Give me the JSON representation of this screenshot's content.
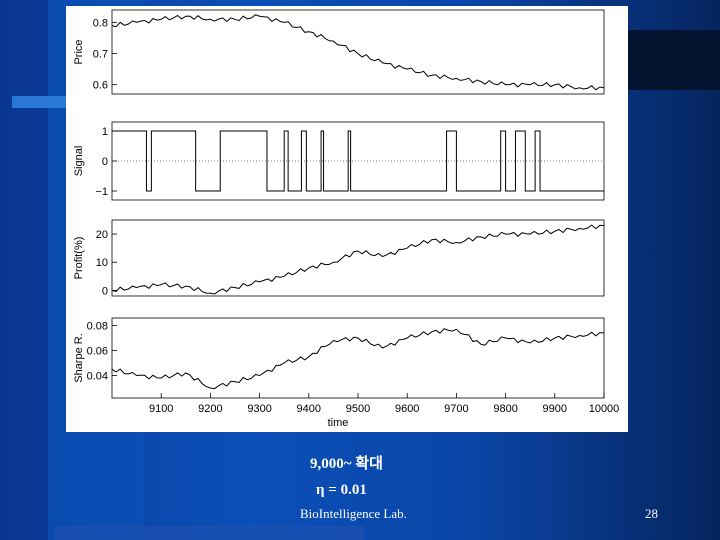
{
  "caption_zoom": "9,000~ 확대",
  "caption_eta": "η = 0.01",
  "footer_lab": "BioIntelligence Lab.",
  "page_number": "28",
  "colors": {
    "line": "#000000",
    "panel": "#ffffff",
    "text": "#ffffff"
  },
  "chart_data": [
    {
      "type": "line",
      "ylabel": "Price",
      "yticks": [
        "0.6",
        "0.7",
        "0.8"
      ],
      "ylim": [
        0.57,
        0.84
      ],
      "x": [
        9000,
        9050,
        9100,
        9150,
        9200,
        9250,
        9300,
        9350,
        9400,
        9450,
        9500,
        9550,
        9600,
        9650,
        9700,
        9750,
        9800,
        9850,
        9900,
        9950,
        10000
      ],
      "series": [
        {
          "values": [
            0.79,
            0.8,
            0.81,
            0.82,
            0.81,
            0.81,
            0.82,
            0.8,
            0.77,
            0.74,
            0.7,
            0.67,
            0.65,
            0.63,
            0.62,
            0.61,
            0.6,
            0.6,
            0.6,
            0.59,
            0.59
          ]
        }
      ]
    },
    {
      "type": "line",
      "ylabel": "Signal",
      "yticks": [
        "−1",
        "0",
        "1"
      ],
      "ylim": [
        -1.3,
        1.3
      ],
      "step": true,
      "x": [
        9000,
        9070,
        9080,
        9160,
        9170,
        9220,
        9230,
        9315,
        9330,
        9350,
        9358,
        9385,
        9395,
        9425,
        9430,
        9480,
        9485,
        9680,
        9700,
        9790,
        9800,
        9820,
        9840,
        9860,
        9870,
        9920,
        9930,
        10000
      ],
      "series": [
        {
          "values": [
            1,
            -1,
            1,
            1,
            -1,
            1,
            1,
            -1,
            -1,
            1,
            -1,
            1,
            -1,
            1,
            -1,
            1,
            -1,
            1,
            -1,
            1,
            -1,
            1,
            -1,
            1,
            -1,
            -1,
            -1,
            -1
          ]
        }
      ]
    },
    {
      "type": "line",
      "ylabel": "Profit(%)",
      "yticks": [
        "0",
        "10",
        "20"
      ],
      "ylim": [
        -2,
        25
      ],
      "x": [
        9000,
        9050,
        9100,
        9150,
        9200,
        9250,
        9300,
        9350,
        9400,
        9450,
        9500,
        9550,
        9600,
        9650,
        9700,
        9750,
        9800,
        9850,
        9900,
        9950,
        10000
      ],
      "series": [
        {
          "values": [
            0,
            1,
            2,
            1.5,
            -1,
            1,
            3,
            5,
            8,
            10,
            14,
            12,
            15,
            18,
            17,
            19,
            20,
            20,
            21,
            22,
            23
          ]
        }
      ]
    },
    {
      "type": "line",
      "ylabel": "Sharpe R.",
      "yticks": [
        "0.04",
        "0.06",
        "0.08"
      ],
      "ylim": [
        0.022,
        0.086
      ],
      "xlabel": "time",
      "xticks": [
        9100,
        9200,
        9300,
        9400,
        9500,
        9600,
        9700,
        9800,
        9900,
        10000
      ],
      "x": [
        9000,
        9050,
        9100,
        9150,
        9200,
        9250,
        9300,
        9350,
        9400,
        9450,
        9500,
        9550,
        9600,
        9650,
        9700,
        9750,
        9800,
        9850,
        9900,
        9950,
        10000
      ],
      "series": [
        {
          "values": [
            0.045,
            0.04,
            0.038,
            0.042,
            0.03,
            0.035,
            0.04,
            0.05,
            0.055,
            0.068,
            0.07,
            0.062,
            0.07,
            0.075,
            0.077,
            0.065,
            0.07,
            0.066,
            0.07,
            0.072,
            0.074
          ]
        }
      ]
    }
  ]
}
